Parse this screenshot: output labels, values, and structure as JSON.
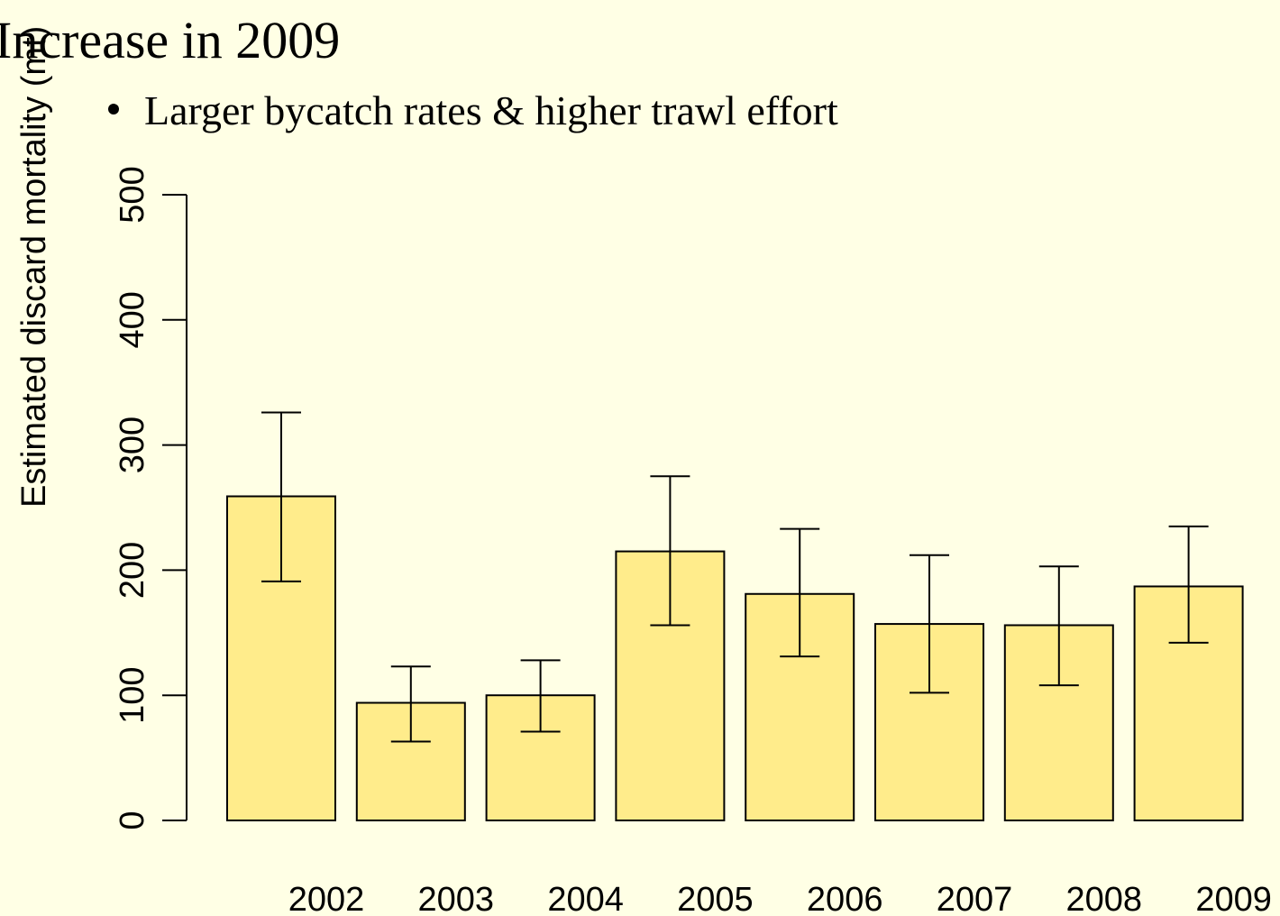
{
  "chart_data": {
    "type": "bar",
    "title": "Increase in 2009",
    "subtitle": "Larger bycatch rates & higher trawl effort",
    "y_label": "Estimated discard mortality (mt)",
    "categories": [
      "2002",
      "2003",
      "2004",
      "2005",
      "2006",
      "2007",
      "2008",
      "2009"
    ],
    "values": [
      259,
      94,
      100,
      215,
      181,
      157,
      156,
      187
    ],
    "error_low": [
      191,
      63,
      71,
      156,
      131,
      102,
      108,
      142
    ],
    "error_high": [
      326,
      123,
      128,
      275,
      233,
      212,
      203,
      235
    ],
    "color": "#ffec8b",
    "ylim": [
      0,
      500
    ],
    "yticks": [
      0,
      100,
      200,
      300,
      400,
      500
    ]
  }
}
